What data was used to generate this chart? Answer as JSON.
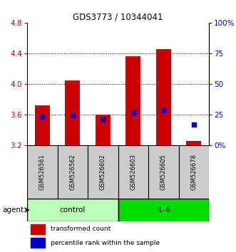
{
  "title": "GDS3773 / 10344041",
  "samples": [
    "GSM526561",
    "GSM526562",
    "GSM526602",
    "GSM526603",
    "GSM526605",
    "GSM526678"
  ],
  "red_bottom": [
    3.2,
    3.2,
    3.2,
    3.2,
    3.2,
    3.2
  ],
  "red_top": [
    3.72,
    4.05,
    3.6,
    4.36,
    4.46,
    3.26
  ],
  "blue_value": [
    3.57,
    3.595,
    3.535,
    3.625,
    3.655,
    3.47
  ],
  "ylim": [
    3.2,
    4.8
  ],
  "yticks": [
    3.2,
    3.6,
    4.0,
    4.4,
    4.8
  ],
  "right_yticks": [
    0,
    25,
    50,
    75,
    100
  ],
  "right_ytick_labels": [
    "0%",
    "25",
    "50",
    "75",
    "100%"
  ],
  "left_color": "#cc0000",
  "blue_color": "#0000cc",
  "control_color": "#bbffbb",
  "il6_color": "#00dd00",
  "control_label": "control",
  "il6_label": "IL-6",
  "agent_label": "agent",
  "legend_red": "transformed count",
  "legend_blue": "percentile rank within the sample",
  "bar_width": 0.5,
  "sample_bg": "#cccccc",
  "gridline_color": "#000000",
  "gridline_lw": 0.7
}
